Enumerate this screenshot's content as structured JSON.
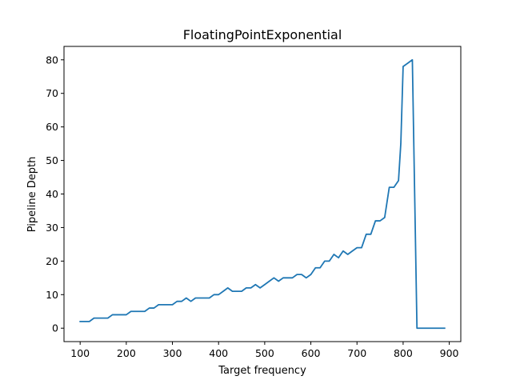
{
  "chart_data": {
    "type": "line",
    "title": "FloatingPointExponential",
    "xlabel": "Target frequency",
    "ylabel": "Pipeline Depth",
    "xlim": [
      65,
      925
    ],
    "ylim": [
      -4,
      84
    ],
    "xticks": [
      100,
      200,
      300,
      400,
      500,
      600,
      700,
      800,
      900
    ],
    "yticks": [
      0,
      10,
      20,
      30,
      40,
      50,
      60,
      70,
      80
    ],
    "grid": false,
    "series": [
      {
        "color": "#1f77b4",
        "x": [
          100,
          110,
          120,
          130,
          140,
          150,
          160,
          170,
          180,
          190,
          200,
          210,
          220,
          230,
          240,
          250,
          260,
          270,
          280,
          290,
          300,
          310,
          320,
          330,
          340,
          350,
          360,
          370,
          380,
          390,
          400,
          410,
          420,
          430,
          440,
          450,
          460,
          470,
          480,
          490,
          500,
          510,
          520,
          530,
          540,
          550,
          560,
          570,
          580,
          590,
          600,
          610,
          620,
          630,
          640,
          650,
          660,
          670,
          680,
          690,
          700,
          710,
          720,
          730,
          740,
          750,
          760,
          770,
          780,
          790,
          795,
          800,
          810,
          820,
          830,
          840,
          850,
          860,
          870,
          880,
          890
        ],
        "y": [
          2,
          2,
          2,
          3,
          3,
          3,
          3,
          4,
          4,
          4,
          4,
          5,
          5,
          5,
          5,
          6,
          6,
          7,
          7,
          7,
          7,
          8,
          8,
          9,
          8,
          9,
          9,
          9,
          9,
          10,
          10,
          11,
          12,
          11,
          11,
          11,
          12,
          12,
          13,
          12,
          13,
          14,
          15,
          14,
          15,
          15,
          15,
          16,
          16,
          15,
          16,
          18,
          18,
          20,
          20,
          22,
          21,
          23,
          22,
          23,
          24,
          24,
          28,
          28,
          32,
          32,
          33,
          42,
          42,
          44,
          55,
          78,
          79,
          80,
          0,
          0,
          0,
          0,
          0,
          0,
          0
        ]
      }
    ]
  }
}
